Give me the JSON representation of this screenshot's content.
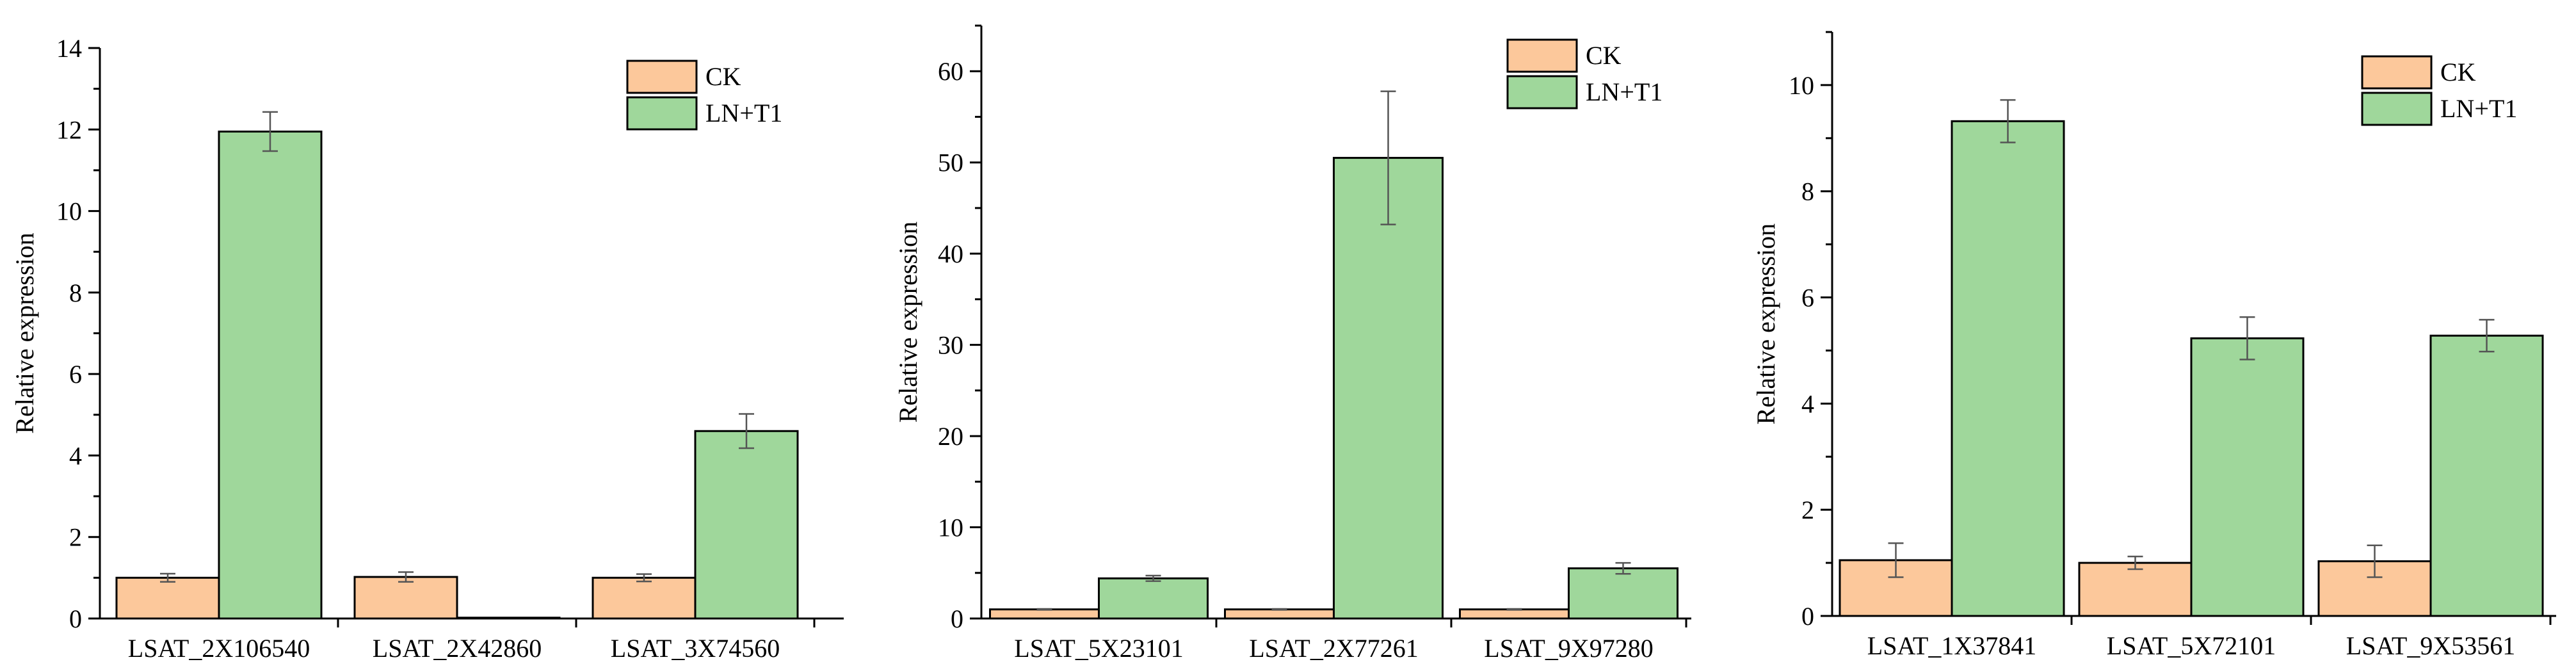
{
  "charts": [
    {
      "type": "bar",
      "ylabel": "Relative expression",
      "ylim": [
        0,
        14
      ],
      "yticks": [
        0,
        2,
        4,
        6,
        8,
        10,
        12,
        14
      ],
      "categories": [
        "LSAT_2X106540",
        "LSAT_2X42860",
        "LSAT_3X74560"
      ],
      "series": [
        {
          "name": "CK",
          "color": "#FCC89B",
          "values": [
            1.0,
            1.02,
            1.0
          ],
          "errors": [
            0.1,
            0.12,
            0.09
          ]
        },
        {
          "name": "LN+T1",
          "color": "#9FD79B",
          "values": [
            11.95,
            0.02,
            4.6
          ],
          "errors": [
            0.48,
            0.0,
            0.42
          ]
        }
      ]
    },
    {
      "type": "bar",
      "ylabel": "Relative expression",
      "ylim": [
        0,
        65
      ],
      "yticks": [
        0,
        10,
        20,
        30,
        40,
        50,
        60
      ],
      "categories": [
        "LSAT_5X23101",
        "LSAT_2X77261",
        "LSAT_9X97280"
      ],
      "series": [
        {
          "name": "CK",
          "color": "#FCC89B",
          "values": [
            1.0,
            1.0,
            1.0
          ],
          "errors": [
            0.05,
            0.05,
            0.05
          ]
        },
        {
          "name": "LN+T1",
          "color": "#9FD79B",
          "values": [
            4.4,
            50.5,
            5.5
          ],
          "errors": [
            0.3,
            7.3,
            0.6
          ]
        }
      ]
    },
    {
      "type": "bar",
      "ylabel": "Relative expression",
      "ylim": [
        0,
        11
      ],
      "yticks": [
        0,
        2,
        4,
        6,
        8,
        10
      ],
      "categories": [
        "LSAT_1X37841",
        "LSAT_5X72101",
        "LSAT_9X53561"
      ],
      "series": [
        {
          "name": "CK",
          "color": "#FCC89B",
          "values": [
            1.05,
            1.0,
            1.03
          ],
          "errors": [
            0.32,
            0.12,
            0.3
          ]
        },
        {
          "name": "LN+T1",
          "color": "#9FD79B",
          "values": [
            9.32,
            5.23,
            5.28
          ],
          "errors": [
            0.4,
            0.4,
            0.3
          ]
        }
      ]
    }
  ]
}
